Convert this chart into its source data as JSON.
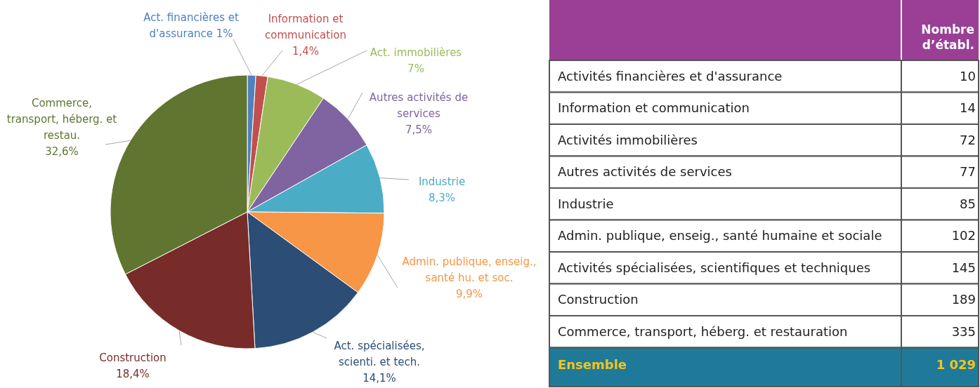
{
  "chart_data": [
    {
      "type": "pie",
      "categories": [
        "Act. financières et d'assurance",
        "Information et communication",
        "Act. immobilières",
        "Autres activités de services",
        "Industrie",
        "Admin. publique, enseig., santé hu. et soc.",
        "Act. spécialisées, scienti. et tech.",
        "Construction",
        "Commerce, transport, héberg. et restau."
      ],
      "values": [
        1,
        1.4,
        7,
        7.5,
        8.3,
        9.9,
        14.1,
        18.4,
        32.6
      ],
      "value_labels": [
        "1%",
        "1,4%",
        "7%",
        "7,5%",
        "8,3%",
        "9,9%",
        "14,1%",
        "18,4%",
        "32,6%"
      ],
      "colors": [
        "#4f81bd",
        "#c0504d",
        "#9bbb59",
        "#8064a2",
        "#4bacc6",
        "#f79646",
        "#2c4d75",
        "#772c2a",
        "#5f7530"
      ]
    },
    {
      "type": "other",
      "ylabel": "Nombre d’établ.",
      "categories": [
        "Activités financières et d'assurance",
        "Information et communication",
        "Activités immobilières",
        "Autres activités de services",
        "Industrie",
        "Admin. publique, enseig., santé humaine et sociale",
        "Activités spécialisées, scientifiques et techniques",
        "Construction",
        "Commerce, transport, héberg. et restauration"
      ],
      "values": [
        10,
        14,
        72,
        77,
        85,
        102,
        145,
        189,
        335
      ],
      "data_labels": true,
      "annotations": [
        "Ensemble",
        "1 029"
      ]
    }
  ]
}
